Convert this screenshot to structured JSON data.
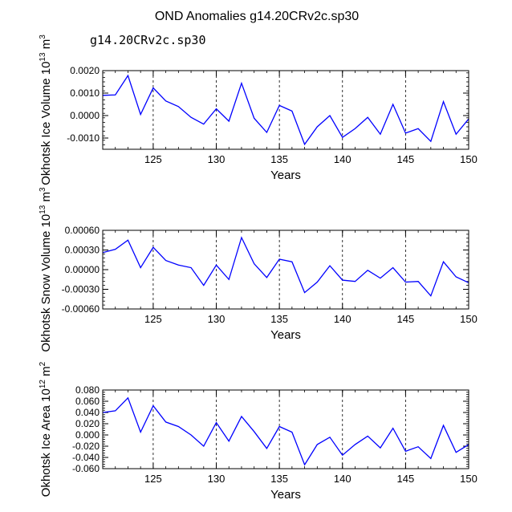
{
  "title": "OND Anomalies g14.20CRv2c.sp30",
  "subtitle": "g14.20CRv2c.sp30",
  "colors": {
    "line": "#0000ff",
    "subtitle": "#5a5aff",
    "axis": "#000000",
    "grid": "#000000"
  },
  "chart_data": [
    {
      "type": "line",
      "name": "ice-volume",
      "ylabel": "Okhotsk Ice Volume",
      "yunit": "10^13 m^3",
      "ylabel_base": "10",
      "ylabel_exp": "13",
      "ylabel_unit": "m",
      "ylabel_unit_exp": "3",
      "xlabel": "Years",
      "xlim": [
        121,
        150
      ],
      "ylim": [
        -0.0015,
        0.002
      ],
      "yticks": [
        -0.001,
        0,
        0.001,
        0.002
      ],
      "ytick_labels": [
        "-0.0010",
        "0.0000",
        "0.0010",
        "0.0020"
      ],
      "xticks": [
        125,
        130,
        135,
        140,
        145,
        150
      ],
      "xtick_labels": [
        "125",
        "130",
        "135",
        "140",
        "145",
        "150"
      ],
      "grid_x": [
        125,
        130,
        135,
        140,
        145
      ],
      "x": [
        121,
        122,
        123,
        124,
        125,
        126,
        127,
        128,
        129,
        130,
        131,
        132,
        133,
        134,
        135,
        136,
        137,
        138,
        139,
        140,
        141,
        142,
        143,
        144,
        145,
        146,
        147,
        148,
        149,
        150
      ],
      "values": [
        0.0009,
        0.00092,
        0.00178,
        5e-05,
        0.00123,
        0.00065,
        0.0004,
        -8e-05,
        -0.00038,
        0.0003,
        -0.00025,
        0.00144,
        -0.00012,
        -0.00075,
        0.00045,
        0.0002,
        -0.00128,
        -0.0005,
        0.0,
        -0.00097,
        -0.00058,
        -8e-05,
        -0.00083,
        0.0005,
        -0.00078,
        -0.00058,
        -0.00115,
        0.00062,
        -0.00083,
        -0.00015
      ]
    },
    {
      "type": "line",
      "name": "snow-volume",
      "ylabel": "Okhotsk Snow Volume",
      "yunit": "10^13 m^3",
      "ylabel_base": "10",
      "ylabel_exp": "13",
      "ylabel_unit": "m",
      "ylabel_unit_exp": "3",
      "xlabel": "Years",
      "xlim": [
        121,
        150
      ],
      "ylim": [
        -0.0006,
        0.0006
      ],
      "yticks": [
        -0.0006,
        -0.0003,
        0,
        0.0003,
        0.0006
      ],
      "ytick_labels": [
        "-0.00060",
        "-0.00030",
        "0.00000",
        "0.00030",
        "0.00060"
      ],
      "xticks": [
        125,
        130,
        135,
        140,
        145,
        150
      ],
      "xtick_labels": [
        "125",
        "130",
        "135",
        "140",
        "145",
        "150"
      ],
      "grid_x": [
        125,
        130,
        135,
        140,
        145
      ],
      "x": [
        121,
        122,
        123,
        124,
        125,
        126,
        127,
        128,
        129,
        130,
        131,
        132,
        133,
        134,
        135,
        136,
        137,
        138,
        139,
        140,
        141,
        142,
        143,
        144,
        145,
        146,
        147,
        148,
        149,
        150
      ],
      "values": [
        0.00026,
        0.00031,
        0.00045,
        3e-05,
        0.00034,
        0.00014,
        7e-05,
        3e-05,
        -0.00024,
        7e-05,
        -0.00015,
        0.00049,
        9e-05,
        -0.00012,
        0.00016,
        0.00012,
        -0.00035,
        -0.00019,
        6e-05,
        -0.00016,
        -0.00018,
        -1e-05,
        -0.00013,
        3e-05,
        -0.00019,
        -0.00018,
        -0.0004,
        0.00012,
        -0.00011,
        -0.0002
      ]
    },
    {
      "type": "line",
      "name": "ice-area",
      "ylabel": "Okhotsk Ice Area",
      "yunit": "10^12 m^2",
      "ylabel_base": "10",
      "ylabel_exp": "12",
      "ylabel_unit": "m",
      "ylabel_unit_exp": "2",
      "xlabel": "Years",
      "xlim": [
        121,
        150
      ],
      "ylim": [
        -0.06,
        0.08
      ],
      "yticks": [
        -0.06,
        -0.04,
        -0.02,
        0,
        0.02,
        0.04,
        0.06,
        0.08
      ],
      "ytick_labels": [
        "-0.060",
        "-0.040",
        "-0.020",
        "0.000",
        "0.020",
        "0.040",
        "0.060",
        "0.080"
      ],
      "xticks": [
        125,
        130,
        135,
        140,
        145,
        150
      ],
      "xtick_labels": [
        "125",
        "130",
        "135",
        "140",
        "145",
        "150"
      ],
      "grid_x": [
        125,
        130,
        135,
        140,
        145
      ],
      "x": [
        121,
        122,
        123,
        124,
        125,
        126,
        127,
        128,
        129,
        130,
        131,
        132,
        133,
        134,
        135,
        136,
        137,
        138,
        139,
        140,
        141,
        142,
        143,
        144,
        145,
        146,
        147,
        148,
        149,
        150
      ],
      "values": [
        0.04,
        0.043,
        0.066,
        0.005,
        0.052,
        0.023,
        0.015,
        0.0,
        -0.02,
        0.022,
        -0.011,
        0.033,
        0.006,
        -0.024,
        0.015,
        0.005,
        -0.053,
        -0.017,
        -0.004,
        -0.036,
        -0.017,
        -0.002,
        -0.023,
        0.012,
        -0.029,
        -0.021,
        -0.042,
        0.017,
        -0.031,
        -0.017
      ]
    }
  ]
}
